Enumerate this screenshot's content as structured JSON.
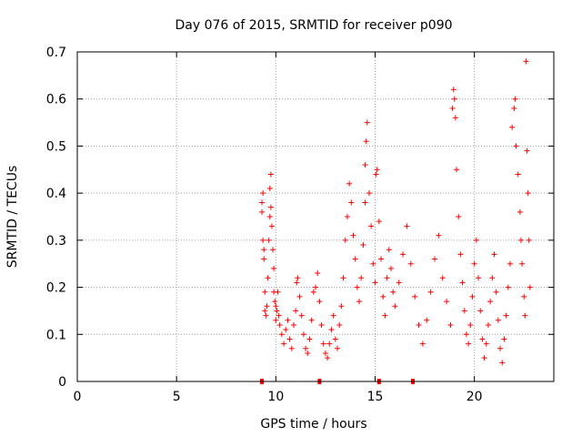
{
  "chart_data": {
    "type": "scatter",
    "title": "Day 076 of 2015, SRMTID for receiver p090",
    "xlabel": "GPS time / hours",
    "ylabel": "SRMTID / TECUs",
    "xlim": [
      0,
      24
    ],
    "ylim": [
      0,
      0.7
    ],
    "xticks": [
      0,
      5,
      10,
      15,
      20
    ],
    "yticks": [
      0,
      0.1,
      0.2,
      0.3,
      0.4,
      0.5,
      0.6,
      0.7
    ],
    "xtick_labels": [
      "0",
      "5",
      "10",
      "15",
      "20"
    ],
    "ytick_labels": [
      "0",
      "0.1",
      "0.2",
      "0.3",
      "0.4",
      "0.5",
      "0.6",
      "0.7"
    ],
    "grid": true,
    "marker": "+",
    "marker_color": "#ff0000",
    "grid_color": "#a0a0a0",
    "series": [
      {
        "name": "SRMTID",
        "points": [
          [
            9.3,
            0.38
          ],
          [
            9.3,
            0.36
          ],
          [
            9.35,
            0.4
          ],
          [
            9.35,
            0.3
          ],
          [
            9.4,
            0.26
          ],
          [
            9.4,
            0.28
          ],
          [
            9.45,
            0.19
          ],
          [
            9.45,
            0.15
          ],
          [
            9.5,
            0.14
          ],
          [
            9.55,
            0.16
          ],
          [
            9.6,
            0.22
          ],
          [
            9.65,
            0.3
          ],
          [
            9.7,
            0.35
          ],
          [
            9.7,
            0.41
          ],
          [
            9.75,
            0.44
          ],
          [
            9.75,
            0.37
          ],
          [
            9.8,
            0.33
          ],
          [
            9.85,
            0.28
          ],
          [
            9.9,
            0.24
          ],
          [
            9.9,
            0.19
          ],
          [
            9.95,
            0.17
          ],
          [
            10.0,
            0.16
          ],
          [
            10.0,
            0.13
          ],
          [
            10.05,
            0.15
          ],
          [
            10.1,
            0.19
          ],
          [
            10.15,
            0.14
          ],
          [
            10.2,
            0.12
          ],
          [
            10.3,
            0.1
          ],
          [
            10.4,
            0.08
          ],
          [
            10.5,
            0.11
          ],
          [
            10.6,
            0.13
          ],
          [
            10.7,
            0.09
          ],
          [
            10.8,
            0.07
          ],
          [
            10.9,
            0.12
          ],
          [
            11.0,
            0.15
          ],
          [
            11.05,
            0.21
          ],
          [
            11.1,
            0.22
          ],
          [
            11.2,
            0.18
          ],
          [
            11.3,
            0.14
          ],
          [
            11.4,
            0.1
          ],
          [
            11.5,
            0.07
          ],
          [
            11.6,
            0.06
          ],
          [
            11.7,
            0.09
          ],
          [
            11.8,
            0.13
          ],
          [
            11.9,
            0.19
          ],
          [
            12.0,
            0.2
          ],
          [
            12.1,
            0.23
          ],
          [
            12.2,
            0.17
          ],
          [
            12.3,
            0.12
          ],
          [
            12.4,
            0.08
          ],
          [
            12.5,
            0.06
          ],
          [
            12.6,
            0.05
          ],
          [
            12.7,
            0.08
          ],
          [
            12.8,
            0.11
          ],
          [
            12.9,
            0.14
          ],
          [
            13.0,
            0.09
          ],
          [
            13.1,
            0.07
          ],
          [
            13.2,
            0.12
          ],
          [
            13.3,
            0.16
          ],
          [
            13.4,
            0.22
          ],
          [
            13.5,
            0.3
          ],
          [
            13.6,
            0.35
          ],
          [
            13.7,
            0.42
          ],
          [
            13.8,
            0.38
          ],
          [
            13.9,
            0.31
          ],
          [
            14.0,
            0.26
          ],
          [
            14.1,
            0.2
          ],
          [
            14.2,
            0.17
          ],
          [
            14.3,
            0.22
          ],
          [
            14.4,
            0.29
          ],
          [
            14.5,
            0.38
          ],
          [
            14.5,
            0.46
          ],
          [
            14.55,
            0.51
          ],
          [
            14.6,
            0.55
          ],
          [
            14.7,
            0.4
          ],
          [
            14.8,
            0.33
          ],
          [
            14.9,
            0.25
          ],
          [
            15.0,
            0.21
          ],
          [
            15.05,
            0.44
          ],
          [
            15.1,
            0.45
          ],
          [
            15.2,
            0.34
          ],
          [
            15.3,
            0.26
          ],
          [
            15.4,
            0.18
          ],
          [
            15.5,
            0.14
          ],
          [
            15.6,
            0.22
          ],
          [
            15.7,
            0.28
          ],
          [
            15.8,
            0.24
          ],
          [
            15.9,
            0.19
          ],
          [
            16.0,
            0.16
          ],
          [
            16.2,
            0.21
          ],
          [
            16.4,
            0.27
          ],
          [
            16.6,
            0.33
          ],
          [
            16.8,
            0.25
          ],
          [
            17.0,
            0.18
          ],
          [
            17.2,
            0.12
          ],
          [
            17.4,
            0.08
          ],
          [
            17.6,
            0.13
          ],
          [
            17.8,
            0.19
          ],
          [
            18.0,
            0.26
          ],
          [
            18.2,
            0.31
          ],
          [
            18.4,
            0.22
          ],
          [
            18.6,
            0.17
          ],
          [
            18.8,
            0.12
          ],
          [
            18.9,
            0.58
          ],
          [
            18.95,
            0.62
          ],
          [
            19.0,
            0.6
          ],
          [
            19.05,
            0.56
          ],
          [
            19.1,
            0.45
          ],
          [
            19.2,
            0.35
          ],
          [
            19.3,
            0.27
          ],
          [
            19.4,
            0.21
          ],
          [
            19.5,
            0.15
          ],
          [
            19.6,
            0.1
          ],
          [
            19.7,
            0.08
          ],
          [
            19.8,
            0.12
          ],
          [
            19.9,
            0.18
          ],
          [
            20.0,
            0.25
          ],
          [
            20.1,
            0.3
          ],
          [
            20.2,
            0.22
          ],
          [
            20.3,
            0.15
          ],
          [
            20.4,
            0.09
          ],
          [
            20.5,
            0.05
          ],
          [
            20.6,
            0.08
          ],
          [
            20.7,
            0.12
          ],
          [
            20.8,
            0.17
          ],
          [
            20.9,
            0.22
          ],
          [
            21.0,
            0.27
          ],
          [
            21.1,
            0.19
          ],
          [
            21.2,
            0.13
          ],
          [
            21.3,
            0.07
          ],
          [
            21.4,
            0.04
          ],
          [
            21.5,
            0.09
          ],
          [
            21.6,
            0.14
          ],
          [
            21.7,
            0.2
          ],
          [
            21.8,
            0.25
          ],
          [
            21.9,
            0.54
          ],
          [
            22.0,
            0.58
          ],
          [
            22.05,
            0.6
          ],
          [
            22.1,
            0.5
          ],
          [
            22.2,
            0.44
          ],
          [
            22.3,
            0.36
          ],
          [
            22.35,
            0.3
          ],
          [
            22.4,
            0.25
          ],
          [
            22.5,
            0.18
          ],
          [
            22.55,
            0.14
          ],
          [
            22.6,
            0.68
          ],
          [
            22.65,
            0.49
          ],
          [
            22.7,
            0.4
          ],
          [
            22.75,
            0.3
          ],
          [
            22.8,
            0.2
          ]
        ]
      }
    ],
    "bottom_markers": [
      9.3,
      12.2,
      15.2,
      16.9
    ]
  }
}
